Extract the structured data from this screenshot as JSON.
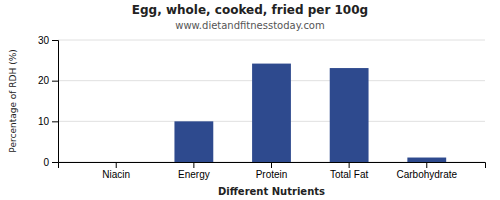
{
  "chart_data": {
    "type": "bar",
    "title": "Egg, whole, cooked, fried per 100g",
    "subtitle": "www.dietandfitnesstoday.com",
    "xlabel": "Different Nutrients",
    "ylabel": "Percentage of RDH (%)",
    "categories": [
      "Niacin",
      "Energy",
      "Protein",
      "Total Fat",
      "Carbohydrate"
    ],
    "values": [
      0.0,
      10.0,
      24.2,
      23.1,
      1.1
    ],
    "color": "#2e4a8e",
    "ylim": [
      0,
      30
    ],
    "yticks": [
      0,
      10,
      20,
      30
    ],
    "grid": true
  }
}
